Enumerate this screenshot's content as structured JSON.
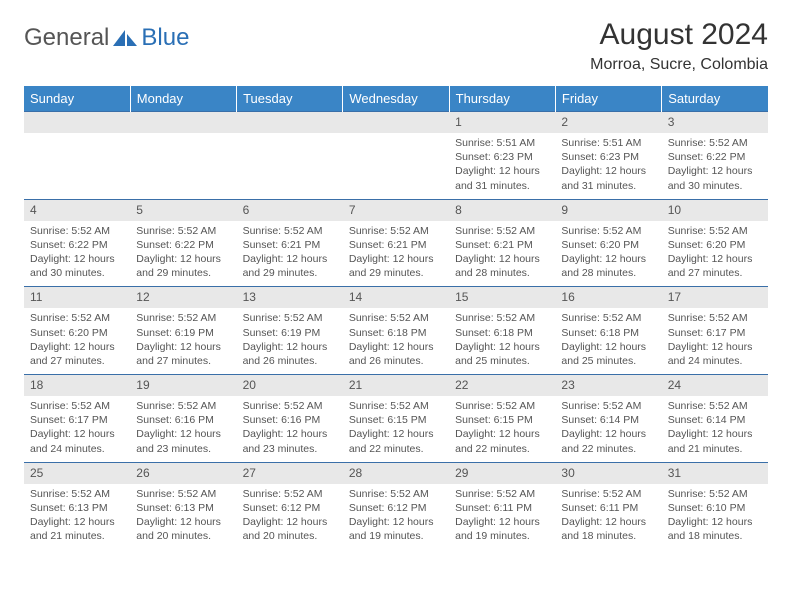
{
  "logo": {
    "word1": "General",
    "word2": "Blue"
  },
  "title": "August 2024",
  "location": "Morroa, Sucre, Colombia",
  "colors": {
    "header_bg": "#3a85c6",
    "header_text": "#ffffff",
    "row_divider": "#3a6fa8",
    "daynum_bg": "#e8e8e8",
    "body_text": "#555555",
    "logo_gray": "#555555",
    "logo_blue": "#2a6fb5"
  },
  "weekdays": [
    "Sunday",
    "Monday",
    "Tuesday",
    "Wednesday",
    "Thursday",
    "Friday",
    "Saturday"
  ],
  "weeks": [
    {
      "nums": [
        "",
        "",
        "",
        "",
        "1",
        "2",
        "3"
      ],
      "cells": [
        null,
        null,
        null,
        null,
        {
          "sunrise": "5:51 AM",
          "sunset": "6:23 PM",
          "daylight": "12 hours and 31 minutes."
        },
        {
          "sunrise": "5:51 AM",
          "sunset": "6:23 PM",
          "daylight": "12 hours and 31 minutes."
        },
        {
          "sunrise": "5:52 AM",
          "sunset": "6:22 PM",
          "daylight": "12 hours and 30 minutes."
        }
      ]
    },
    {
      "nums": [
        "4",
        "5",
        "6",
        "7",
        "8",
        "9",
        "10"
      ],
      "cells": [
        {
          "sunrise": "5:52 AM",
          "sunset": "6:22 PM",
          "daylight": "12 hours and 30 minutes."
        },
        {
          "sunrise": "5:52 AM",
          "sunset": "6:22 PM",
          "daylight": "12 hours and 29 minutes."
        },
        {
          "sunrise": "5:52 AM",
          "sunset": "6:21 PM",
          "daylight": "12 hours and 29 minutes."
        },
        {
          "sunrise": "5:52 AM",
          "sunset": "6:21 PM",
          "daylight": "12 hours and 29 minutes."
        },
        {
          "sunrise": "5:52 AM",
          "sunset": "6:21 PM",
          "daylight": "12 hours and 28 minutes."
        },
        {
          "sunrise": "5:52 AM",
          "sunset": "6:20 PM",
          "daylight": "12 hours and 28 minutes."
        },
        {
          "sunrise": "5:52 AM",
          "sunset": "6:20 PM",
          "daylight": "12 hours and 27 minutes."
        }
      ]
    },
    {
      "nums": [
        "11",
        "12",
        "13",
        "14",
        "15",
        "16",
        "17"
      ],
      "cells": [
        {
          "sunrise": "5:52 AM",
          "sunset": "6:20 PM",
          "daylight": "12 hours and 27 minutes."
        },
        {
          "sunrise": "5:52 AM",
          "sunset": "6:19 PM",
          "daylight": "12 hours and 27 minutes."
        },
        {
          "sunrise": "5:52 AM",
          "sunset": "6:19 PM",
          "daylight": "12 hours and 26 minutes."
        },
        {
          "sunrise": "5:52 AM",
          "sunset": "6:18 PM",
          "daylight": "12 hours and 26 minutes."
        },
        {
          "sunrise": "5:52 AM",
          "sunset": "6:18 PM",
          "daylight": "12 hours and 25 minutes."
        },
        {
          "sunrise": "5:52 AM",
          "sunset": "6:18 PM",
          "daylight": "12 hours and 25 minutes."
        },
        {
          "sunrise": "5:52 AM",
          "sunset": "6:17 PM",
          "daylight": "12 hours and 24 minutes."
        }
      ]
    },
    {
      "nums": [
        "18",
        "19",
        "20",
        "21",
        "22",
        "23",
        "24"
      ],
      "cells": [
        {
          "sunrise": "5:52 AM",
          "sunset": "6:17 PM",
          "daylight": "12 hours and 24 minutes."
        },
        {
          "sunrise": "5:52 AM",
          "sunset": "6:16 PM",
          "daylight": "12 hours and 23 minutes."
        },
        {
          "sunrise": "5:52 AM",
          "sunset": "6:16 PM",
          "daylight": "12 hours and 23 minutes."
        },
        {
          "sunrise": "5:52 AM",
          "sunset": "6:15 PM",
          "daylight": "12 hours and 22 minutes."
        },
        {
          "sunrise": "5:52 AM",
          "sunset": "6:15 PM",
          "daylight": "12 hours and 22 minutes."
        },
        {
          "sunrise": "5:52 AM",
          "sunset": "6:14 PM",
          "daylight": "12 hours and 22 minutes."
        },
        {
          "sunrise": "5:52 AM",
          "sunset": "6:14 PM",
          "daylight": "12 hours and 21 minutes."
        }
      ]
    },
    {
      "nums": [
        "25",
        "26",
        "27",
        "28",
        "29",
        "30",
        "31"
      ],
      "cells": [
        {
          "sunrise": "5:52 AM",
          "sunset": "6:13 PM",
          "daylight": "12 hours and 21 minutes."
        },
        {
          "sunrise": "5:52 AM",
          "sunset": "6:13 PM",
          "daylight": "12 hours and 20 minutes."
        },
        {
          "sunrise": "5:52 AM",
          "sunset": "6:12 PM",
          "daylight": "12 hours and 20 minutes."
        },
        {
          "sunrise": "5:52 AM",
          "sunset": "6:12 PM",
          "daylight": "12 hours and 19 minutes."
        },
        {
          "sunrise": "5:52 AM",
          "sunset": "6:11 PM",
          "daylight": "12 hours and 19 minutes."
        },
        {
          "sunrise": "5:52 AM",
          "sunset": "6:11 PM",
          "daylight": "12 hours and 18 minutes."
        },
        {
          "sunrise": "5:52 AM",
          "sunset": "6:10 PM",
          "daylight": "12 hours and 18 minutes."
        }
      ]
    }
  ],
  "labels": {
    "sunrise": "Sunrise:",
    "sunset": "Sunset:",
    "daylight": "Daylight:"
  }
}
